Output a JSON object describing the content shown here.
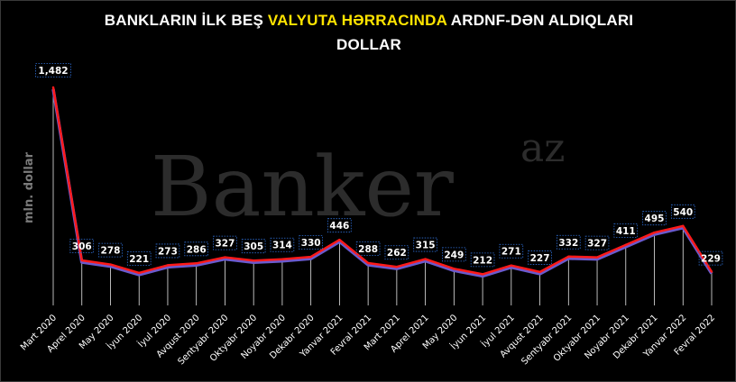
{
  "title": {
    "line1_a": "BANKLARIN İLK BEŞ ",
    "line1_highlight": "VALYUTA HƏRRACINDA",
    "line1_b": " ARDNF-DƏN ALDIQLARI",
    "line2": "DOLLAR"
  },
  "watermark": {
    "main": "Banker",
    "sup": "az"
  },
  "colors": {
    "background": "#000000",
    "line_main": "#ff1a1a",
    "line_shadow": "#6a5acd",
    "label_box_border": "#2f6fd6",
    "title_highlight": "#ffe400"
  },
  "chart_data": {
    "type": "line",
    "title": "BANKLARIN İLK BEŞ VALYUTA HƏRRACINDA ARDNF-DƏN ALDIQLARI DOLLAR",
    "ylabel": "mln. dollar",
    "xlabel": "",
    "categories": [
      "Mart 2020",
      "Aprel 2020",
      "May 2020",
      "İyun 2020",
      "İyul 2020",
      "Avqust 2020",
      "Sentyabr 2020",
      "Oktyabr 2020",
      "Noyabr 2020",
      "Dekabr 2020",
      "Yanvar 2021",
      "Fevral 2021",
      "Mart 2021",
      "Aprel 2021",
      "May 2020",
      "İyun 2021",
      "İyul 2021",
      "Avqust 2021",
      "Sentyabr 2021",
      "Oktyabr 2021",
      "Noyabr 2021",
      "Dekabr 2021",
      "Yanvar 2022",
      "Fevral 2022"
    ],
    "values": [
      1482,
      306,
      278,
      221,
      273,
      286,
      327,
      305,
      314,
      330,
      446,
      288,
      262,
      315,
      249,
      212,
      271,
      227,
      332,
      327,
      411,
      495,
      540,
      229
    ],
    "value_labels": [
      "1,482",
      "306",
      "278",
      "221",
      "273",
      "286",
      "327",
      "305",
      "314",
      "330",
      "446",
      "288",
      "262",
      "315",
      "249",
      "212",
      "271",
      "227",
      "332",
      "327",
      "411",
      "495",
      "540",
      "229"
    ],
    "ylim": [
      0,
      1600
    ],
    "grid": false,
    "legend": "none",
    "drop_lines": true
  }
}
